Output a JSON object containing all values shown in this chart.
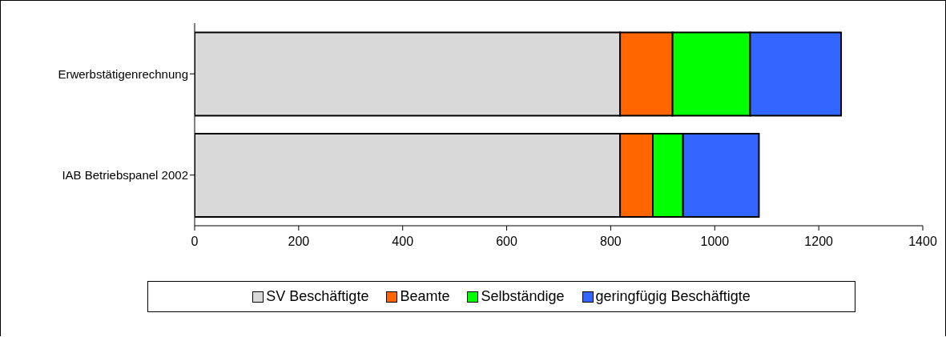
{
  "chart_data": {
    "type": "bar",
    "orientation": "horizontal",
    "stacked": true,
    "categories": [
      "Erwerbstätigenrechnung",
      "IAB Betriebspanel 2002"
    ],
    "series": [
      {
        "name": "SV Beschäftigte",
        "color": "#d9d9d9",
        "values": [
          818,
          818
        ]
      },
      {
        "name": "Beamte",
        "color": "#ff6600",
        "values": [
          101,
          63
        ]
      },
      {
        "name": "Selbständige",
        "color": "#00ff00",
        "values": [
          149,
          58
        ]
      },
      {
        "name": "geringfügig Beschäftigte",
        "color": "#3366ff",
        "values": [
          175,
          146
        ]
      }
    ],
    "xlim": [
      0,
      1400
    ],
    "xticks": [
      0,
      200,
      400,
      600,
      800,
      1000,
      1200,
      1400
    ],
    "grid": false,
    "legend": "bottom"
  }
}
